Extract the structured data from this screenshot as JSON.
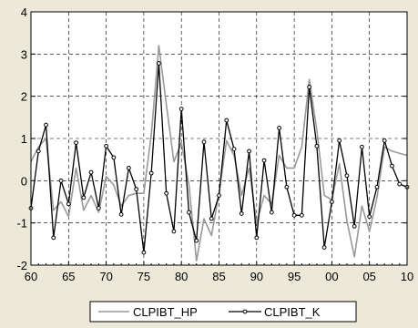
{
  "chart_data": {
    "type": "line",
    "title": "",
    "xlabel": "",
    "ylabel": "",
    "xlim": [
      1960,
      2010
    ],
    "ylim": [
      -2,
      4
    ],
    "grid": true,
    "legend_position": "bottom",
    "x_tick_values": [
      1960,
      1965,
      1970,
      1975,
      1980,
      1985,
      1990,
      1995,
      2000,
      2005,
      2010
    ],
    "x_tick_labels": [
      "60",
      "65",
      "70",
      "75",
      "80",
      "85",
      "90",
      "95",
      "00",
      "05",
      "10"
    ],
    "y_tick_values": [
      -2,
      -1,
      0,
      1,
      2,
      3,
      4
    ],
    "y_tick_labels": [
      "-2",
      "-1",
      "0",
      "1",
      "2",
      "3",
      "4"
    ],
    "x": [
      1960,
      1961,
      1962,
      1963,
      1964,
      1965,
      1966,
      1967,
      1968,
      1969,
      1970,
      1971,
      1972,
      1973,
      1974,
      1975,
      1976,
      1977,
      1978,
      1979,
      1980,
      1981,
      1982,
      1983,
      1984,
      1985,
      1986,
      1987,
      1988,
      1989,
      1990,
      1991,
      1992,
      1993,
      1994,
      1995,
      1996,
      1997,
      1998,
      1999,
      2000,
      2001,
      2002,
      2003,
      2004,
      2005,
      2006,
      2007,
      2008,
      2009,
      2010
    ],
    "series": [
      {
        "name": "CLPIBT_HP",
        "color": "#999999",
        "marker": "none",
        "values": [
          0.45,
          0.8,
          1.0,
          -0.7,
          -0.5,
          -0.85,
          0.3,
          -0.7,
          -0.35,
          -0.75,
          0.1,
          -0.1,
          -0.6,
          -0.35,
          -0.3,
          -0.3,
          1.1,
          3.2,
          1.8,
          0.45,
          0.9,
          -0.1,
          -1.9,
          -0.9,
          -1.3,
          -0.3,
          0.95,
          0.6,
          -0.35,
          0.3,
          -1.0,
          -0.35,
          -0.55,
          0.6,
          0.3,
          0.3,
          0.8,
          2.4,
          1.2,
          -0.35,
          -0.45,
          0.4,
          -0.95,
          -1.8,
          -0.6,
          -1.2,
          -0.4,
          0.8,
          0.7,
          0.65,
          0.6
        ]
      },
      {
        "name": "CLPIBT_K",
        "color": "#000000",
        "marker": "circle",
        "values": [
          -0.65,
          0.7,
          1.32,
          -1.35,
          0.0,
          -0.55,
          0.9,
          -0.4,
          0.2,
          -0.65,
          0.82,
          0.55,
          -0.8,
          0.3,
          -0.2,
          -1.7,
          0.18,
          2.78,
          -0.3,
          -1.2,
          1.7,
          -0.75,
          -1.42,
          0.92,
          -0.9,
          -0.35,
          1.43,
          0.75,
          -0.78,
          0.7,
          -1.35,
          0.48,
          -0.75,
          1.25,
          -0.15,
          -0.82,
          -0.82,
          2.22,
          0.82,
          -1.58,
          -0.5,
          0.95,
          0.12,
          -1.08,
          0.8,
          -0.85,
          -0.15,
          0.95,
          0.35,
          -0.08,
          -0.15
        ]
      }
    ]
  }
}
